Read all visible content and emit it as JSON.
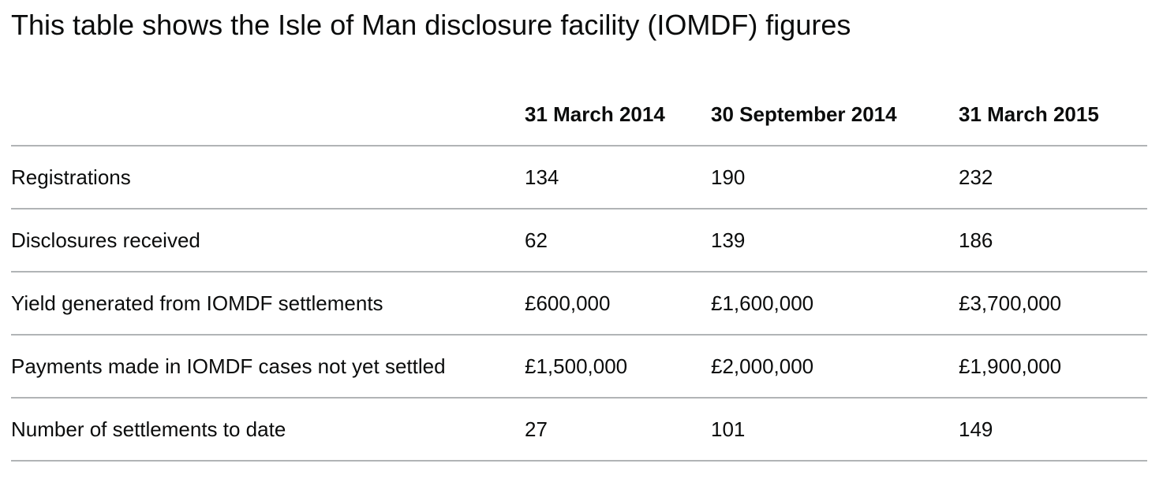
{
  "caption": "This table shows the Isle of Man disclosure facility (IOMDF) figures",
  "table": {
    "columns": [
      "",
      "31 March 2014",
      "30 September 2014",
      "31 March 2015"
    ],
    "rows": [
      [
        "Registrations",
        "134",
        "190",
        "232"
      ],
      [
        "Disclosures received",
        "62",
        "139",
        "186"
      ],
      [
        "Yield generated from IOMDF settlements",
        "£600,000",
        "£1,600,000",
        "£3,700,000"
      ],
      [
        "Payments made in IOMDF cases not yet settled",
        "£1,500,000",
        "£2,000,000",
        "£1,900,000"
      ],
      [
        "Number of settlements to date",
        "27",
        "101",
        "149"
      ]
    ]
  },
  "colors": {
    "text": "#0b0c0c",
    "rule": "#b1b4b6",
    "background": "#ffffff"
  }
}
